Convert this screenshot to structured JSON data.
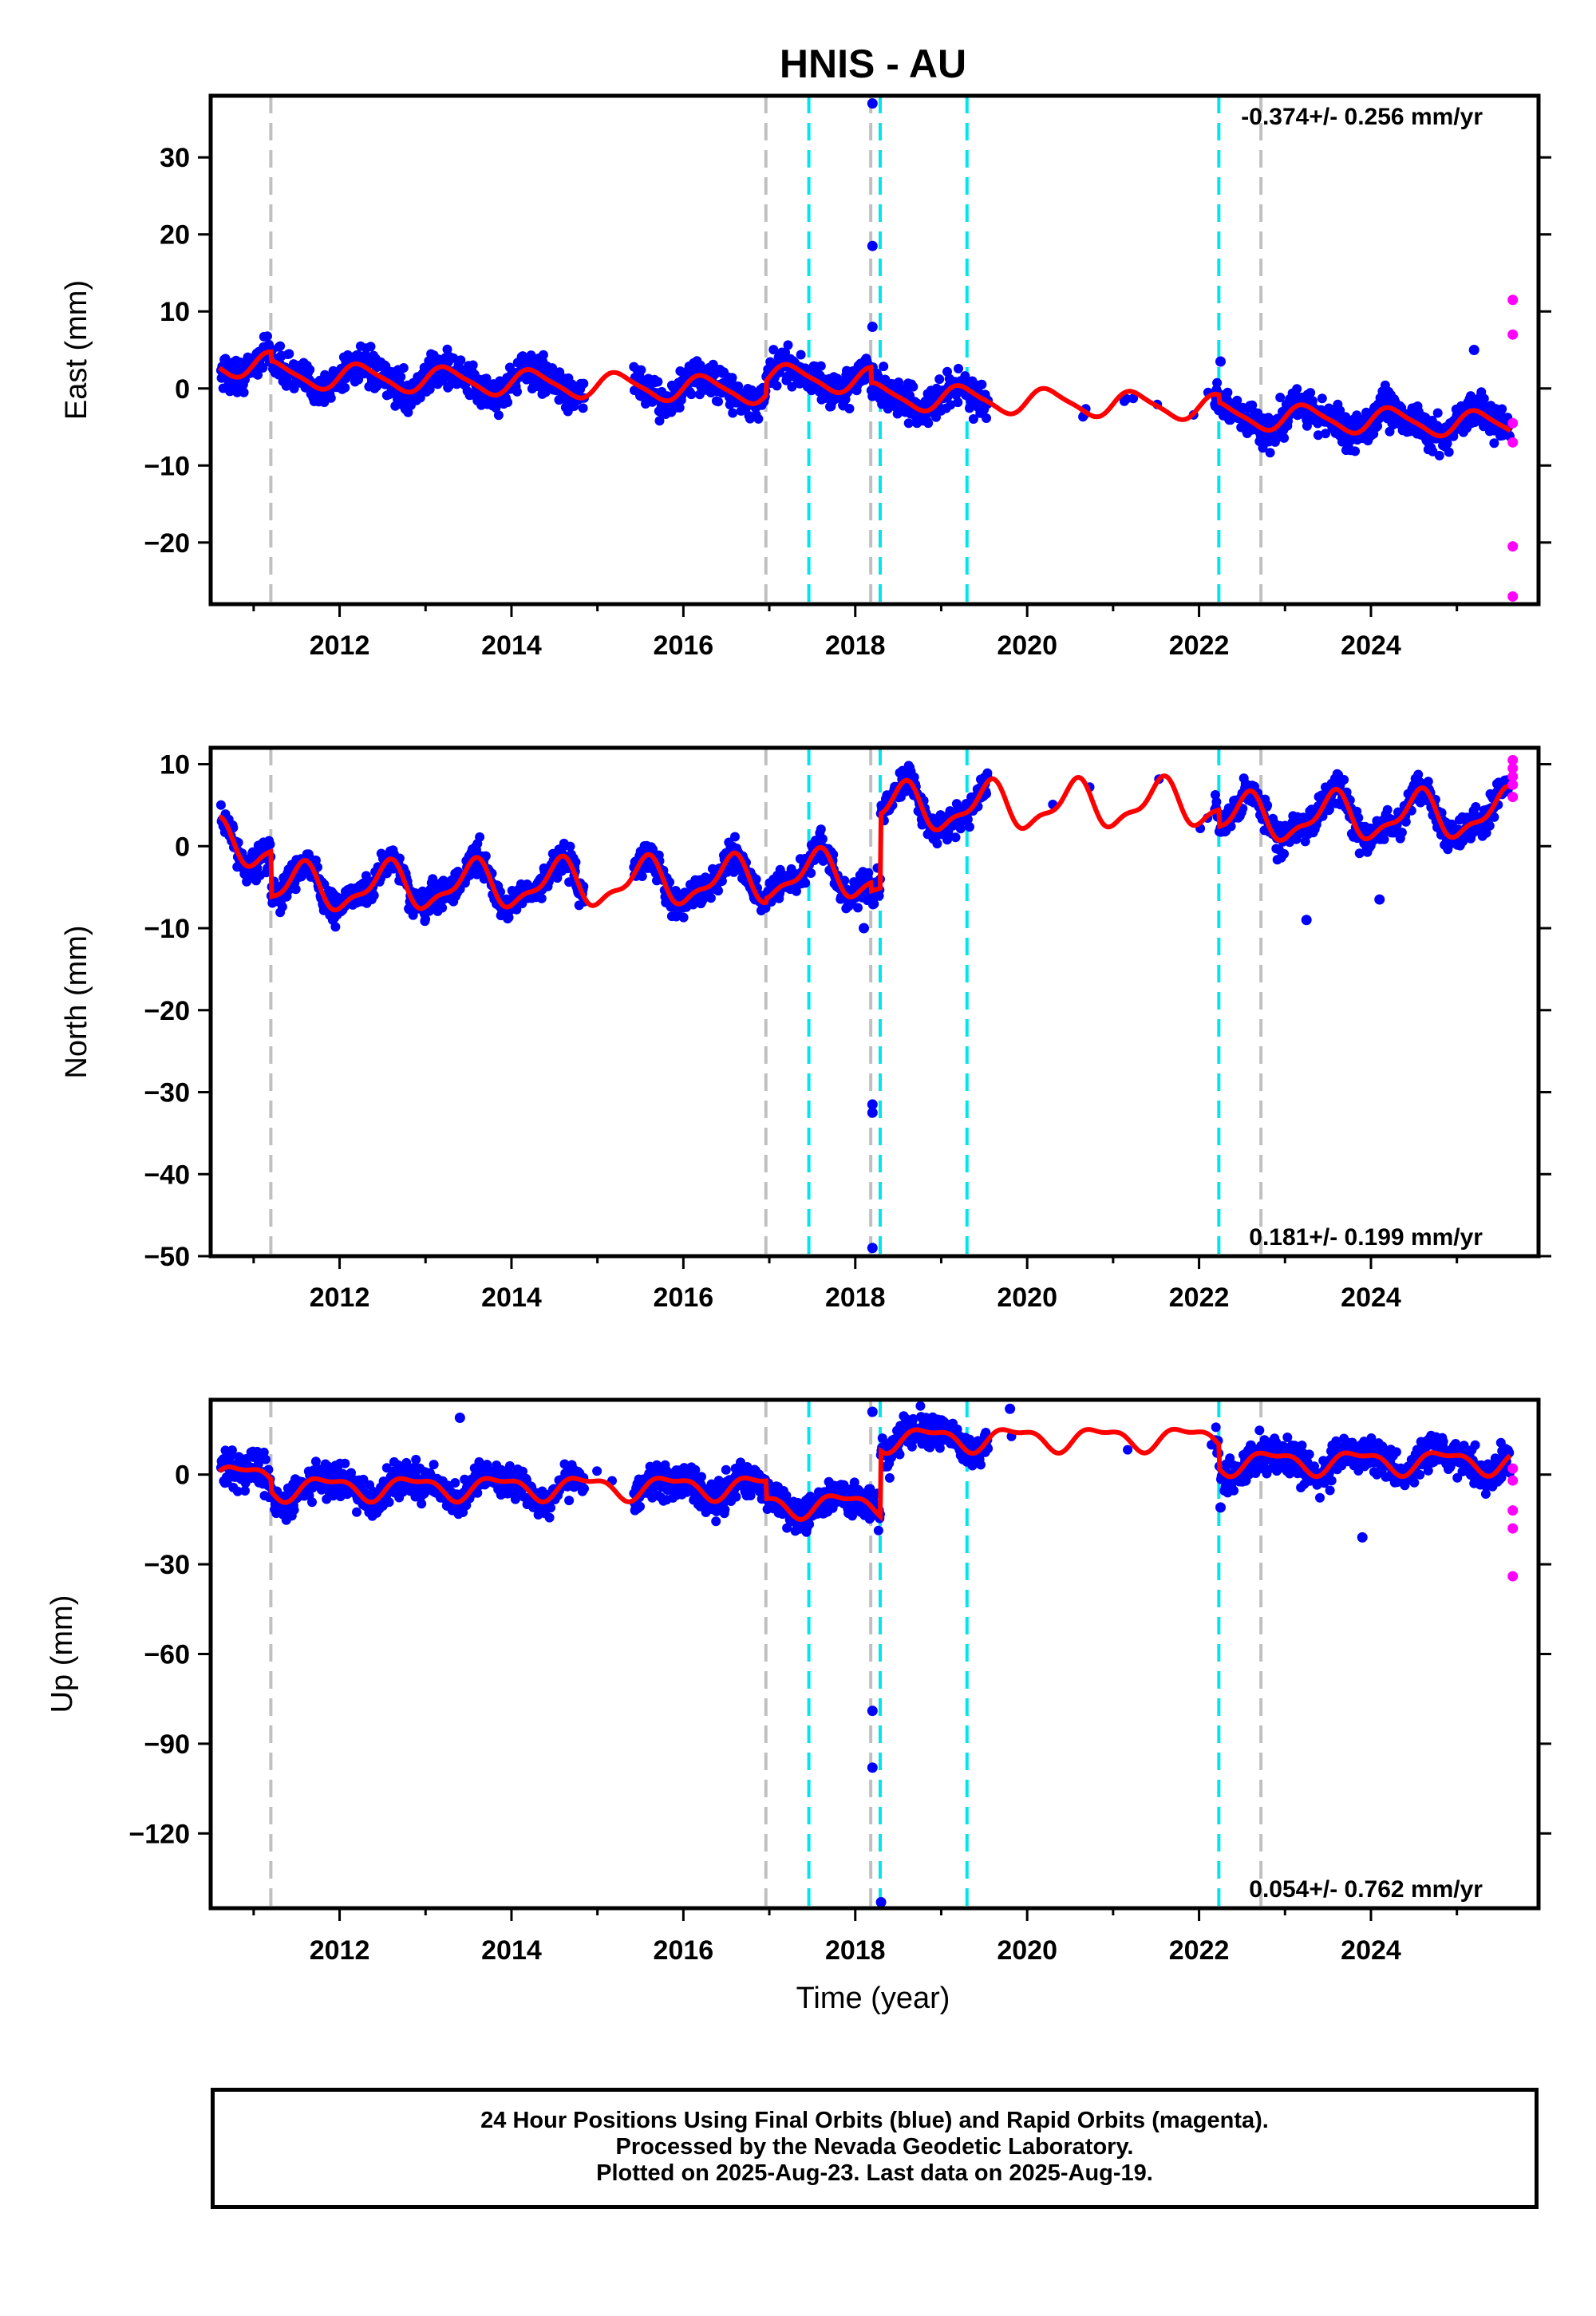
{
  "chart_data": {
    "type": "scatter",
    "title": "HNIS - AU",
    "xlabel": "Time (year)",
    "x_tick_labels": [
      "2012",
      "2014",
      "2016",
      "2018",
      "2020",
      "2022",
      "2024"
    ],
    "xlim": [
      2010.5,
      2025.95
    ],
    "colors": {
      "final": "#0000ff",
      "rapid": "#ff00ff",
      "model": "#ff0000",
      "equipment_change": "#c0c0c0",
      "event": "#00e5ee"
    },
    "gray_dashed_lines": [
      2011.2,
      2016.96,
      2018.18,
      2022.72
    ],
    "cyan_dashed_lines": [
      2017.46,
      2018.29,
      2019.3,
      2022.23
    ],
    "data_gaps": [
      [
        2014.85,
        2015.42
      ],
      [
        2019.55,
        2022.18
      ]
    ],
    "panels": [
      {
        "id": "east",
        "ylabel": "East (mm)",
        "ylim": [
          -28,
          38
        ],
        "yticks": [
          -20,
          -10,
          0,
          10,
          20,
          30
        ],
        "ytick_labels": [
          "−20",
          "−10",
          "0",
          "10",
          "20",
          "30"
        ],
        "rate_text": "-0.374+/- 0.256 mm/yr",
        "rate_position": "top-right",
        "model": {
          "rate": -0.374,
          "annual_amp": 1.6,
          "annual_phase": 0.0,
          "semiannual_amp": 0.35,
          "offsets": [
            [
              2010.6,
              0.5
            ],
            [
              2011.2,
              -1.2
            ],
            [
              2016.96,
              1.8
            ],
            [
              2018.18,
              -2.0
            ],
            [
              2022.23,
              -1.0
            ]
          ]
        },
        "scatter_spread": 1.6,
        "outliers": [
          [
            2018.2,
            37
          ],
          [
            2018.2,
            18.5
          ],
          [
            2018.2,
            8
          ],
          [
            2022.25,
            3.5
          ],
          [
            2025.2,
            5
          ]
        ],
        "rapid_points": [
          [
            2025.65,
            11.5
          ],
          [
            2025.65,
            7
          ],
          [
            2025.65,
            -4.5
          ],
          [
            2025.65,
            -7
          ],
          [
            2025.65,
            -20.5
          ],
          [
            2025.65,
            -27
          ]
        ]
      },
      {
        "id": "north",
        "ylabel": "North (mm)",
        "ylim": [
          -50,
          12
        ],
        "yticks": [
          -50,
          -40,
          -30,
          -20,
          -10,
          0,
          10
        ],
        "ytick_labels": [
          "−50",
          "−40",
          "−30",
          "−20",
          "−10",
          "0",
          "10"
        ],
        "rate_text": "0.181+/- 0.199 mm/yr",
        "rate_position": "bottom-right",
        "model": {
          "rate": 0.181,
          "annual_amp": 2.6,
          "annual_phase": 0.3,
          "semiannual_amp": 1.0,
          "offsets": [
            [
              2010.6,
              1.5
            ],
            [
              2011.2,
              -5.5
            ],
            [
              2016.96,
              0.5
            ],
            [
              2018.18,
              -1.0
            ],
            [
              2018.29,
              9.0
            ],
            [
              2022.23,
              -2.0
            ]
          ]
        },
        "scatter_spread": 1.3,
        "outliers": [
          [
            2018.2,
            -31.5
          ],
          [
            2018.2,
            -32.5
          ],
          [
            2018.2,
            -49
          ],
          [
            2023.25,
            -9
          ],
          [
            2024.1,
            -6.5
          ],
          [
            2018.1,
            -10
          ]
        ],
        "rapid_points": [
          [
            2025.65,
            10.5
          ],
          [
            2025.65,
            9.5
          ],
          [
            2025.65,
            8.5
          ],
          [
            2025.65,
            7.5
          ],
          [
            2025.65,
            6
          ]
        ]
      },
      {
        "id": "up",
        "ylabel": "Up (mm)",
        "ylim": [
          -145,
          25
        ],
        "yticks": [
          -120,
          -90,
          -60,
          -30,
          0
        ],
        "ytick_labels": [
          "−120",
          "−90",
          "−60",
          "−30",
          "0"
        ],
        "rate_text": "0.054+/- 0.762 mm/yr",
        "rate_position": "bottom-right",
        "model": {
          "rate": 0.054,
          "annual_amp": 3.5,
          "annual_phase": 0.6,
          "semiannual_amp": 1.5,
          "offsets": [
            [
              2010.6,
              0
            ],
            [
              2011.2,
              -4
            ],
            [
              2016.96,
              -6
            ],
            [
              2018.18,
              0
            ],
            [
              2018.29,
              22
            ],
            [
              2022.23,
              -8
            ]
          ]
        },
        "scatter_spread": 4.0,
        "outliers": [
          [
            2018.2,
            21
          ],
          [
            2018.2,
            -79
          ],
          [
            2018.2,
            -98
          ],
          [
            2018.3,
            -143
          ],
          [
            2013.4,
            19
          ],
          [
            2019.8,
            22
          ],
          [
            2022.25,
            -11
          ],
          [
            2023.9,
            -21
          ]
        ],
        "rapid_points": [
          [
            2025.65,
            2
          ],
          [
            2025.65,
            -2
          ],
          [
            2025.65,
            -12
          ],
          [
            2025.65,
            -18
          ],
          [
            2025.65,
            -34
          ]
        ]
      }
    ]
  },
  "footer": {
    "line1": "24 Hour Positions Using Final Orbits (blue) and Rapid Orbits (magenta).",
    "line2": "Processed by the Nevada Geodetic Laboratory.",
    "line3": "Plotted on 2025-Aug-23. Last data on 2025-Aug-19."
  }
}
